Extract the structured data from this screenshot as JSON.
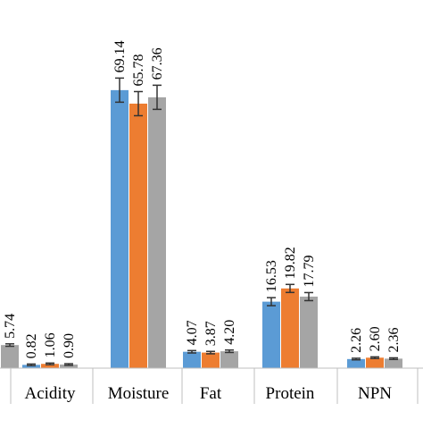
{
  "chart_data": {
    "type": "bar",
    "title": "",
    "xlabel": "",
    "ylabel": "",
    "categories": [
      "",
      "Acidity",
      "Moisture",
      "Fat",
      "Protein",
      "NPN"
    ],
    "series": [
      {
        "values": [
          null,
          0.82,
          69.14,
          4.07,
          16.53,
          2.26
        ],
        "errors": [
          null,
          0.2,
          3.0,
          0.3,
          1.0,
          0.2
        ]
      },
      {
        "values": [
          null,
          1.06,
          65.78,
          3.87,
          19.82,
          2.6
        ],
        "errors": [
          null,
          0.2,
          3.0,
          0.3,
          1.0,
          0.2
        ]
      },
      {
        "values": [
          5.74,
          0.9,
          67.36,
          4.2,
          17.79,
          2.36
        ],
        "errors": [
          0.3,
          0.2,
          3.0,
          0.3,
          1.0,
          0.2
        ]
      }
    ],
    "value_labels": [
      [
        "",
        "0.82",
        "69.14",
        "4.07",
        "16.53",
        "2.26"
      ],
      [
        "",
        "1.06",
        "65.78",
        "3.87",
        "19.82",
        "2.60"
      ],
      [
        "5.74",
        "0.90",
        "67.36",
        "4.20",
        "17.79",
        "2.36"
      ]
    ],
    "colors": [
      "#5b9bd5",
      "#ed7d31",
      "#a5a5a5"
    ],
    "ylim": [
      0,
      80
    ],
    "grid": false,
    "legend": "none"
  }
}
